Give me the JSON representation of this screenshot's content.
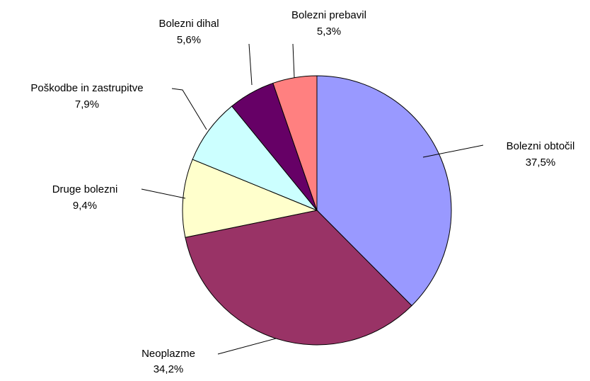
{
  "chart_data": {
    "type": "pie",
    "categories": [
      "Bolezni obtočil",
      "Neoplazme",
      "Druge bolezni",
      "Poškodbe in zastrupitve",
      "Bolezni dihal",
      "Bolezni prebavil"
    ],
    "values": [
      37.5,
      34.2,
      9.4,
      7.9,
      5.6,
      5.3
    ],
    "value_labels": [
      "37,5%",
      "34,2%",
      "9,4%",
      "7,9%",
      "5,6%",
      "5,3%"
    ],
    "colors": [
      "#9999ff",
      "#993366",
      "#ffffcc",
      "#ccffff",
      "#660066",
      "#ff8080"
    ]
  }
}
